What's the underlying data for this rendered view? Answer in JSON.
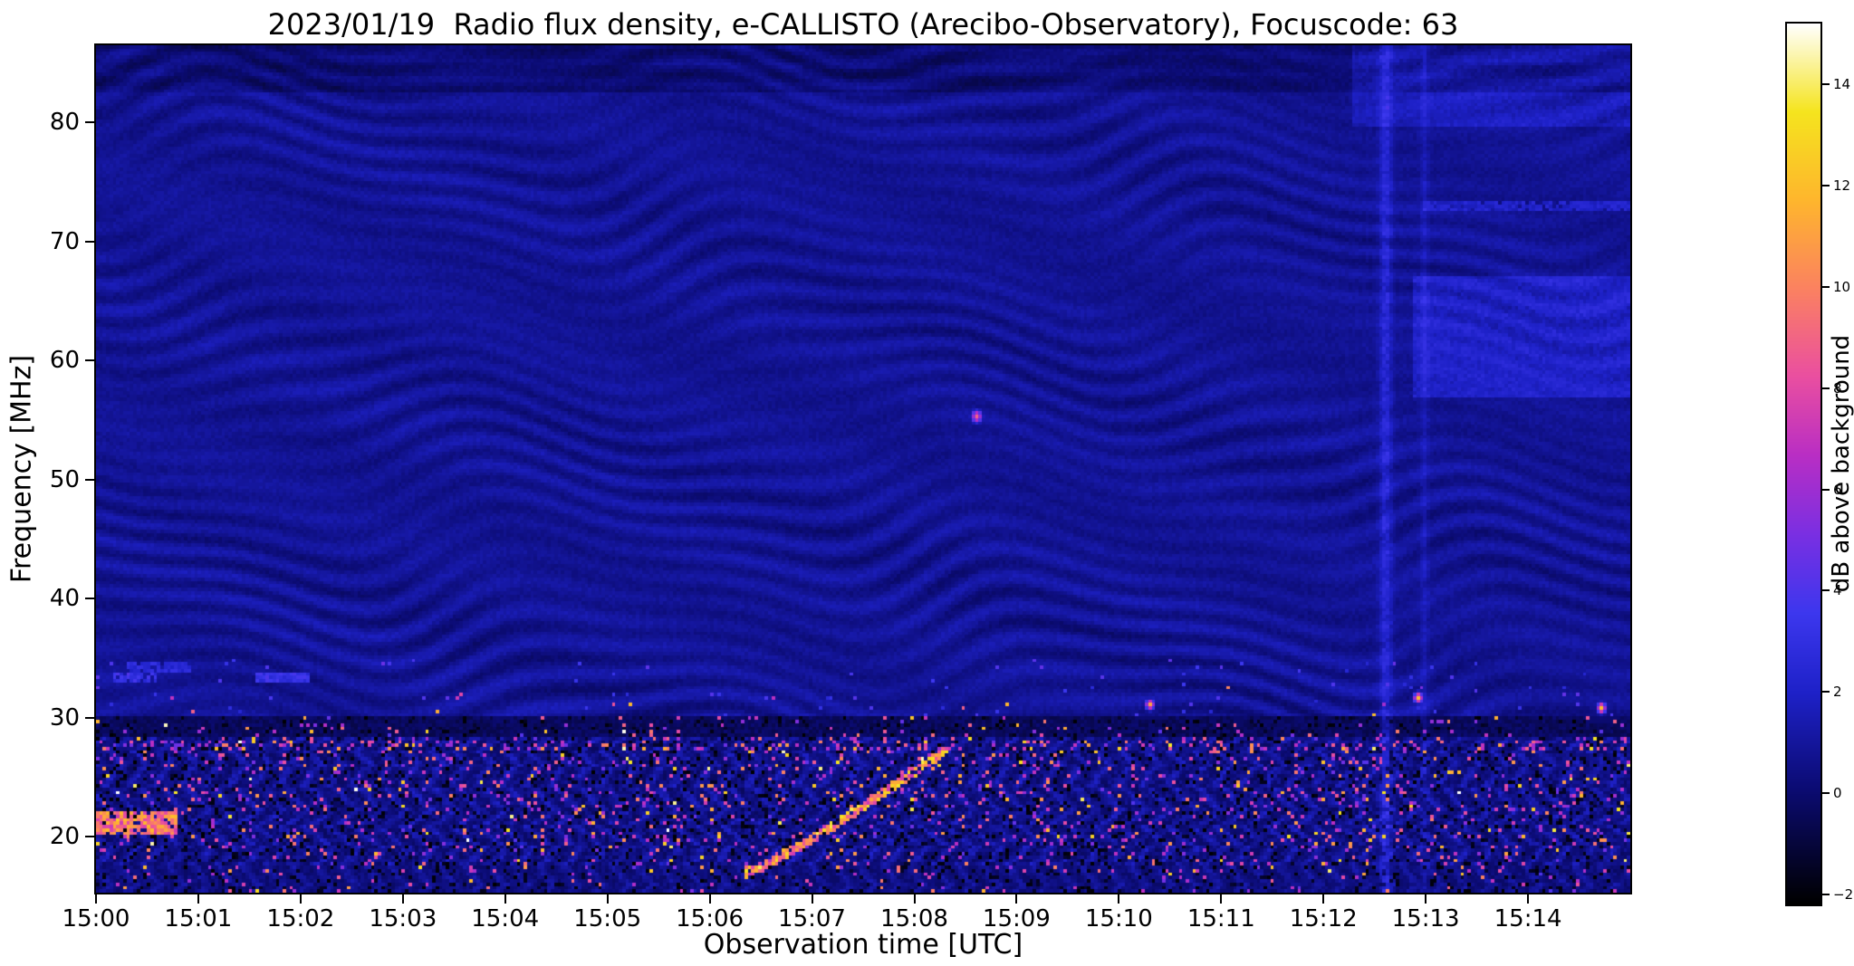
{
  "chart_data": {
    "type": "heatmap",
    "title": "2023/01/19  Radio flux density, e-CALLISTO (Arecibo-Observatory), Focuscode: 63",
    "xlabel": "Observation time [UTC]",
    "ylabel": "Frequency [MHz]",
    "source": {
      "date": "2023/01/19",
      "network": "e-CALLISTO",
      "station": "Arecibo-Observatory",
      "focuscode": "63"
    },
    "x_ticks": [
      "15:00",
      "15:01",
      "15:02",
      "15:03",
      "15:04",
      "15:05",
      "15:06",
      "15:07",
      "15:08",
      "15:09",
      "15:10",
      "15:11",
      "15:12",
      "15:13",
      "15:14"
    ],
    "x_range_minutes": [
      0,
      15
    ],
    "y_ticks": [
      20,
      30,
      40,
      50,
      60,
      70,
      80
    ],
    "y_range_mhz": [
      15.3,
      86.5
    ],
    "colorbar": {
      "label": "dB above background",
      "ticks": [
        -2,
        0,
        2,
        4,
        6,
        8,
        10,
        12,
        14
      ],
      "range_db": [
        -2.2,
        15.2
      ]
    },
    "colormap": {
      "name": "gnuplot2-like",
      "stops": [
        [
          0.0,
          "#000000"
        ],
        [
          0.13,
          "#0b0b72"
        ],
        [
          0.24,
          "#1e21c8"
        ],
        [
          0.33,
          "#3c37ee"
        ],
        [
          0.42,
          "#7a2fe2"
        ],
        [
          0.51,
          "#b92ec4"
        ],
        [
          0.6,
          "#ea4fa0"
        ],
        [
          0.7,
          "#fb8260"
        ],
        [
          0.8,
          "#feb62d"
        ],
        [
          0.9,
          "#f5e41e"
        ],
        [
          1.0,
          "#ffffff"
        ]
      ]
    },
    "background_db": 0.8,
    "noisy_band_max_mhz": 30,
    "features": [
      {
        "type": "drifting_burst",
        "t_start": 6.35,
        "f_start": 16.8,
        "t_end": 8.3,
        "f_end": 27.2,
        "curve_exp": 1.15,
        "peak_db": 14
      },
      {
        "type": "streak",
        "t_start": 0.0,
        "t_end": 0.75,
        "freq": 21.0,
        "width_mhz": 1.1,
        "peak_db": 12
      },
      {
        "type": "streak",
        "t_start": 0.15,
        "t_end": 0.55,
        "freq": 33.4,
        "width_mhz": 0.4,
        "peak_db": 4
      },
      {
        "type": "streak",
        "t_start": 1.55,
        "t_end": 2.05,
        "freq": 33.4,
        "width_mhz": 0.4,
        "peak_db": 4
      },
      {
        "type": "streak",
        "t_start": 0.3,
        "t_end": 0.9,
        "freq": 34.1,
        "width_mhz": 0.35,
        "peak_db": 3.2
      },
      {
        "type": "streak",
        "t_start": 13.0,
        "t_end": 15.0,
        "freq": 73.0,
        "width_mhz": 0.45,
        "peak_db": 2.6
      },
      {
        "type": "spot",
        "t": 8.62,
        "freq": 55.2,
        "t_sigma": 0.05,
        "f_sigma": 0.5,
        "peak_db": 9
      },
      {
        "type": "spot",
        "t": 10.32,
        "freq": 31.0,
        "t_sigma": 0.04,
        "f_sigma": 0.4,
        "peak_db": 11
      },
      {
        "type": "spot",
        "t": 12.95,
        "freq": 31.5,
        "t_sigma": 0.04,
        "f_sigma": 0.4,
        "peak_db": 12
      },
      {
        "type": "spot",
        "t": 14.72,
        "freq": 30.6,
        "t_sigma": 0.04,
        "f_sigma": 0.4,
        "peak_db": 12
      },
      {
        "type": "vertical_line",
        "t": 12.62,
        "width_min": 0.06,
        "add_db": 1.7
      },
      {
        "type": "vertical_line",
        "t": 13.0,
        "width_min": 0.04,
        "add_db": 0.8
      },
      {
        "type": "patch",
        "t_start": 12.9,
        "t_end": 15.0,
        "f_start": 57,
        "f_end": 67,
        "add_db": 1.2
      },
      {
        "type": "patch",
        "t_start": 12.3,
        "t_end": 15.0,
        "f_start": 80,
        "f_end": 86.5,
        "add_db": 0.9
      }
    ]
  }
}
